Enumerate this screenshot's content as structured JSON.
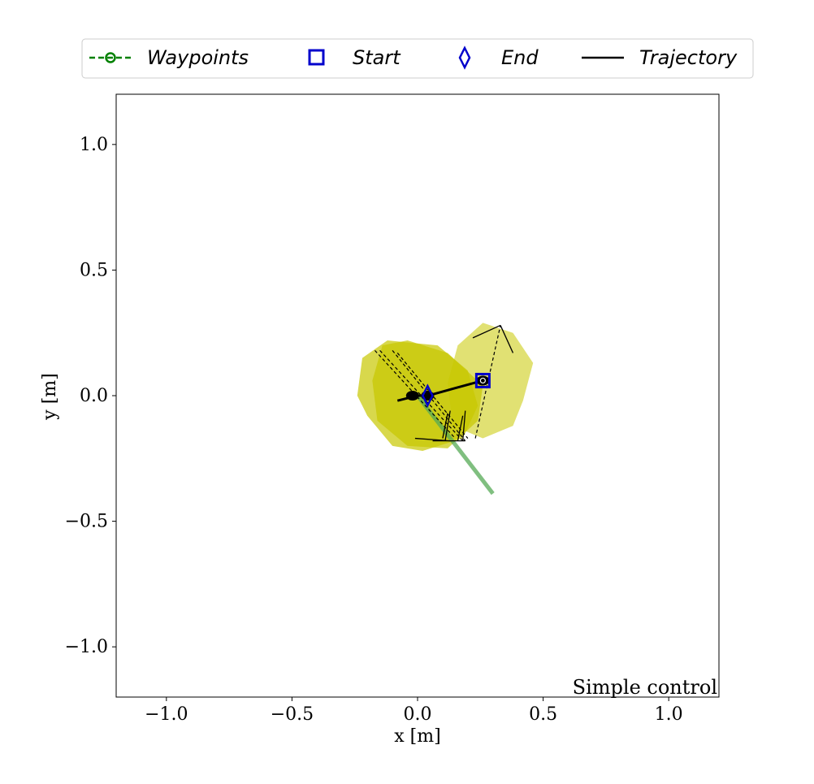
{
  "chart_data": {
    "type": "scatter",
    "xlabel": "x [m]",
    "ylabel": "y [m]",
    "xlim": [
      -1.2,
      1.2
    ],
    "ylim": [
      -1.2,
      1.2
    ],
    "xticks": [
      -1.0,
      -0.5,
      0.0,
      0.5,
      1.0
    ],
    "xtick_labels": [
      "−1.0",
      "−0.5",
      "0.0",
      "0.5",
      "1.0"
    ],
    "yticks": [
      -1.0,
      -0.5,
      0.0,
      0.5,
      1.0
    ],
    "ytick_labels": [
      "−1.0",
      "−0.5",
      "0.0",
      "0.5",
      "1.0"
    ],
    "grid": false,
    "legend_position": "top",
    "legend": [
      {
        "label": "Waypoints",
        "marker": "circle-dashed-line",
        "color": "#008000"
      },
      {
        "label": "Start",
        "marker": "square",
        "color": "#0000cc"
      },
      {
        "label": "End",
        "marker": "diamond",
        "color": "#0000cc"
      },
      {
        "label": "Trajectory",
        "marker": "line",
        "color": "#000000"
      }
    ],
    "annotation": "Simple control",
    "colors": {
      "footprint": "#c8c800",
      "path": "#55aa55",
      "start_end": "#0000cc",
      "trajectory": "#000000"
    },
    "waypoint_path": [
      [
        0.0,
        0.0
      ],
      [
        0.3,
        -0.39
      ]
    ],
    "start": [
      0.26,
      0.06
    ],
    "end": [
      0.04,
      0.0
    ],
    "trajectory": [
      [
        0.26,
        0.06
      ],
      [
        0.15,
        0.03
      ],
      [
        0.06,
        0.005
      ],
      [
        0.04,
        0.0
      ],
      [
        0.0,
        0.0
      ],
      [
        -0.04,
        -0.01
      ],
      [
        -0.08,
        -0.02
      ]
    ],
    "robot_positions": [
      [
        0.26,
        0.06
      ],
      [
        0.04,
        0.0
      ],
      [
        -0.02,
        0.0
      ]
    ],
    "footprints": [
      [
        [
          0.26,
          0.29
        ],
        [
          0.38,
          0.25
        ],
        [
          0.46,
          0.13
        ],
        [
          0.42,
          -0.02
        ],
        [
          0.38,
          -0.12
        ],
        [
          0.26,
          -0.17
        ],
        [
          0.14,
          -0.12
        ],
        [
          0.12,
          0.05
        ],
        [
          0.16,
          0.2
        ]
      ],
      [
        [
          -0.12,
          0.22
        ],
        [
          0.08,
          0.2
        ],
        [
          0.2,
          0.1
        ],
        [
          0.24,
          -0.04
        ],
        [
          0.18,
          -0.17
        ],
        [
          0.02,
          -0.22
        ],
        [
          -0.1,
          -0.2
        ],
        [
          -0.2,
          -0.08
        ],
        [
          -0.24,
          0.0
        ],
        [
          -0.22,
          0.15
        ]
      ],
      [
        [
          -0.04,
          0.22
        ],
        [
          0.12,
          0.17
        ],
        [
          0.26,
          0.04
        ],
        [
          0.24,
          -0.1
        ],
        [
          0.12,
          -0.21
        ],
        [
          -0.04,
          -0.2
        ],
        [
          -0.16,
          -0.1
        ],
        [
          -0.18,
          0.06
        ],
        [
          -0.14,
          0.2
        ]
      ]
    ],
    "dashed_lines": [
      [
        [
          0.23,
          -0.17
        ],
        [
          0.33,
          0.28
        ]
      ],
      [
        [
          -0.17,
          0.18
        ],
        [
          0.15,
          -0.17
        ]
      ],
      [
        [
          -0.15,
          0.18
        ],
        [
          0.18,
          -0.18
        ]
      ],
      [
        [
          -0.1,
          0.18
        ],
        [
          0.19,
          -0.18
        ]
      ],
      [
        [
          -0.08,
          0.17
        ],
        [
          0.2,
          -0.17
        ]
      ]
    ],
    "solid_segments": [
      [
        [
          0.22,
          0.23
        ],
        [
          0.33,
          0.28
        ]
      ],
      [
        [
          0.33,
          0.28
        ],
        [
          0.38,
          0.17
        ]
      ],
      [
        [
          -0.01,
          -0.17
        ],
        [
          0.13,
          -0.18
        ]
      ],
      [
        [
          0.06,
          -0.18
        ],
        [
          0.19,
          -0.18
        ]
      ],
      [
        [
          0.11,
          -0.18
        ],
        [
          0.13,
          -0.06
        ]
      ],
      [
        [
          0.18,
          -0.18
        ],
        [
          0.19,
          -0.06
        ]
      ],
      [
        [
          0.1,
          -0.17
        ],
        [
          0.12,
          -0.07
        ]
      ],
      [
        [
          0.16,
          -0.18
        ],
        [
          0.18,
          -0.08
        ]
      ]
    ]
  }
}
